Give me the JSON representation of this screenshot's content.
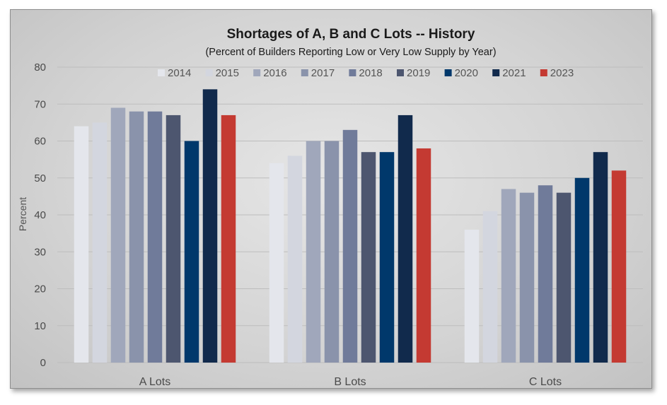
{
  "chart_data": {
    "type": "bar",
    "title": "Shortages of A, B and C Lots -- History",
    "subtitle": "(Percent of Builders Reporting Low or Very Low Supply by Year)",
    "ylabel": "Percent",
    "xlabel": "",
    "ylim": [
      0,
      80
    ],
    "yticks": [
      0,
      10,
      20,
      30,
      40,
      50,
      60,
      70,
      80
    ],
    "grid": true,
    "legend_position": "top",
    "categories": [
      "A Lots",
      "B Lots",
      "C Lots"
    ],
    "series": [
      {
        "name": "2014",
        "color": "#e4e6ec",
        "values": [
          64,
          54,
          36
        ]
      },
      {
        "name": "2015",
        "color": "#d3d6df",
        "values": [
          65,
          56,
          41
        ]
      },
      {
        "name": "2016",
        "color": "#a0a7bb",
        "values": [
          69,
          60,
          47
        ]
      },
      {
        "name": "2017",
        "color": "#8a93ab",
        "values": [
          68,
          60,
          46
        ]
      },
      {
        "name": "2018",
        "color": "#707b9a",
        "values": [
          68,
          63,
          48
        ]
      },
      {
        "name": "2019",
        "color": "#4d566f",
        "values": [
          67,
          57,
          46
        ]
      },
      {
        "name": "2020",
        "color": "#00386b",
        "values": [
          60,
          57,
          50
        ]
      },
      {
        "name": "2021",
        "color": "#112a4c",
        "values": [
          74,
          67,
          57
        ]
      },
      {
        "name": "2023",
        "color": "#c43a32",
        "values": [
          67,
          58,
          52
        ]
      }
    ]
  }
}
